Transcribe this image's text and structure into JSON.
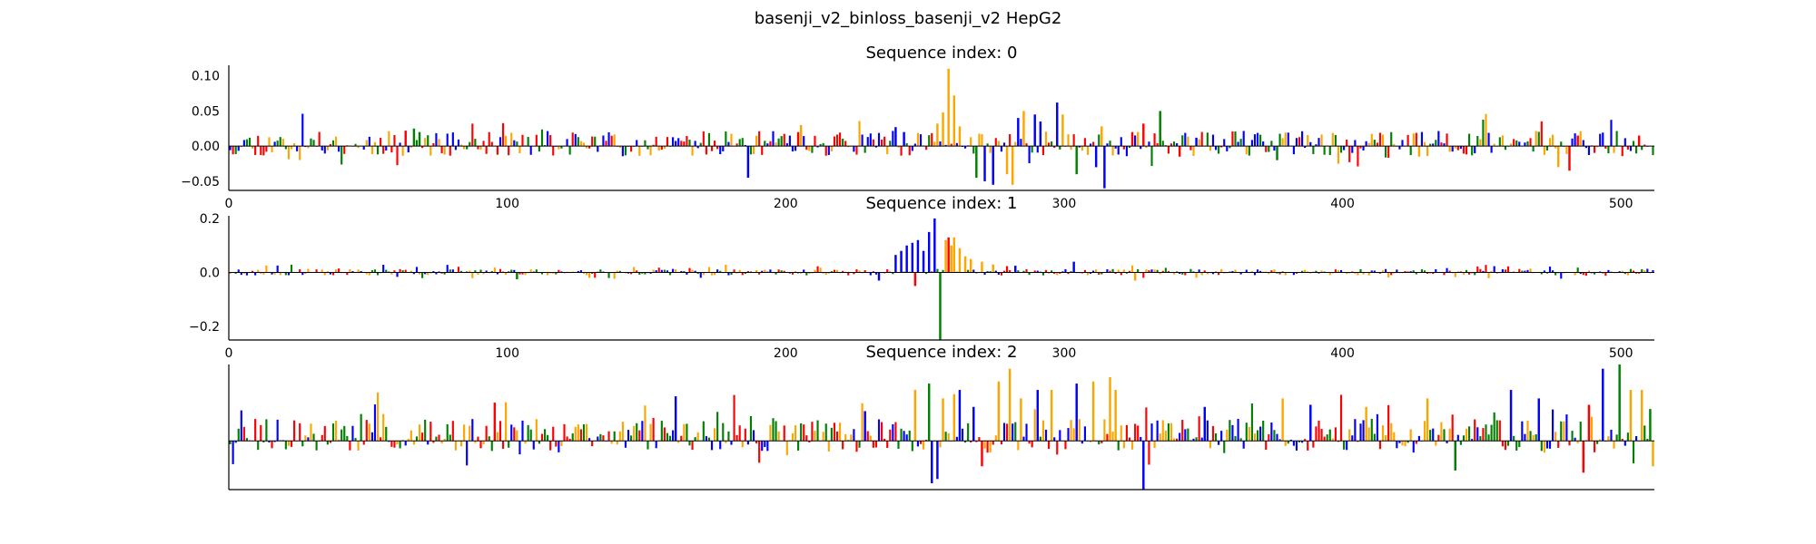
{
  "figure": {
    "title": "basenji_v2_binloss_basenji_v2 HepG2"
  },
  "colors": {
    "A": "#008000",
    "C": "#0000ff",
    "G": "#ffa500",
    "T": "#ff0000"
  },
  "chart_data": [
    {
      "type": "sequence-logo",
      "title": "Sequence index: 0",
      "xlim": [
        0,
        512
      ],
      "ylim": [
        -0.063,
        0.115
      ],
      "x_ticks": [
        "0",
        "100",
        "200",
        "300",
        "400",
        "500"
      ],
      "y_ticks": [
        "0.10",
        "0.05",
        "0.00",
        "−0.05"
      ],
      "y_tick_values": [
        0.1,
        0.05,
        0.0,
        -0.05
      ],
      "features": [
        {
          "x": 63,
          "value": 0.022,
          "base": "T"
        },
        {
          "x": 66,
          "value": 0.025,
          "base": "A"
        },
        {
          "x": 68,
          "value": 0.02,
          "base": "A"
        },
        {
          "x": 186,
          "value": -0.045,
          "base": "C"
        },
        {
          "x": 205,
          "value": 0.03,
          "base": "G"
        },
        {
          "x": 204,
          "value": 0.02,
          "base": "T"
        },
        {
          "x": 239,
          "value": 0.027,
          "base": "C"
        },
        {
          "x": 242,
          "value": 0.02,
          "base": "C"
        },
        {
          "x": 254,
          "value": 0.032,
          "base": "G"
        },
        {
          "x": 256,
          "value": 0.048,
          "base": "G"
        },
        {
          "x": 258,
          "value": 0.11,
          "base": "G"
        },
        {
          "x": 260,
          "value": 0.072,
          "base": "G"
        },
        {
          "x": 262,
          "value": 0.028,
          "base": "G"
        },
        {
          "x": 268,
          "value": -0.045,
          "base": "A"
        },
        {
          "x": 271,
          "value": -0.05,
          "base": "C"
        },
        {
          "x": 274,
          "value": -0.055,
          "base": "C"
        },
        {
          "x": 279,
          "value": -0.04,
          "base": "G"
        },
        {
          "x": 281,
          "value": -0.055,
          "base": "G"
        },
        {
          "x": 283,
          "value": 0.04,
          "base": "C"
        },
        {
          "x": 285,
          "value": 0.05,
          "base": "G"
        },
        {
          "x": 289,
          "value": 0.045,
          "base": "C"
        },
        {
          "x": 291,
          "value": 0.035,
          "base": "C"
        },
        {
          "x": 297,
          "value": 0.062,
          "base": "C"
        },
        {
          "x": 299,
          "value": 0.045,
          "base": "G"
        },
        {
          "x": 304,
          "value": -0.04,
          "base": "A"
        },
        {
          "x": 311,
          "value": -0.03,
          "base": "C"
        },
        {
          "x": 314,
          "value": -0.06,
          "base": "C"
        },
        {
          "x": 313,
          "value": 0.028,
          "base": "G"
        },
        {
          "x": 324,
          "value": 0.02,
          "base": "T"
        },
        {
          "x": 326,
          "value": 0.02,
          "base": "G"
        },
        {
          "x": 328,
          "value": 0.032,
          "base": "T"
        },
        {
          "x": 334,
          "value": 0.05,
          "base": "A"
        },
        {
          "x": 341,
          "value": -0.015,
          "base": "T"
        },
        {
          "x": 347,
          "value": 0.012,
          "base": "C"
        },
        {
          "x": 376,
          "value": -0.02,
          "base": "A"
        },
        {
          "x": 427,
          "value": -0.015,
          "base": "G"
        },
        {
          "x": 477,
          "value": -0.03,
          "base": "G"
        },
        {
          "x": 481,
          "value": -0.035,
          "base": "T"
        },
        {
          "x": 484,
          "value": 0.015,
          "base": "T"
        },
        {
          "x": 506,
          "value": 0.015,
          "base": "T"
        }
      ],
      "seed": 11,
      "noise": 0.018,
      "neg_bias": 0.4
    },
    {
      "type": "sequence-logo",
      "title": "Sequence index: 1",
      "xlim": [
        0,
        512
      ],
      "ylim": [
        -0.25,
        0.21
      ],
      "x_ticks": [
        "0",
        "100",
        "200",
        "300",
        "400",
        "500"
      ],
      "y_ticks": [
        "0.2",
        "0.0",
        "−0.2"
      ],
      "y_tick_values": [
        0.2,
        0.0,
        -0.2
      ],
      "features": [
        {
          "x": 233,
          "value": -0.03,
          "base": "C"
        },
        {
          "x": 239,
          "value": 0.065,
          "base": "C"
        },
        {
          "x": 241,
          "value": 0.08,
          "base": "C"
        },
        {
          "x": 243,
          "value": 0.1,
          "base": "C"
        },
        {
          "x": 245,
          "value": 0.11,
          "base": "C"
        },
        {
          "x": 247,
          "value": 0.12,
          "base": "C"
        },
        {
          "x": 249,
          "value": 0.08,
          "base": "C"
        },
        {
          "x": 251,
          "value": 0.15,
          "base": "C"
        },
        {
          "x": 253,
          "value": 0.2,
          "base": "C"
        },
        {
          "x": 257,
          "value": 0.12,
          "base": "G"
        },
        {
          "x": 259,
          "value": 0.1,
          "base": "G"
        },
        {
          "x": 260,
          "value": 0.13,
          "base": "G"
        },
        {
          "x": 262,
          "value": 0.09,
          "base": "G"
        },
        {
          "x": 255,
          "value": -0.25,
          "base": "A"
        },
        {
          "x": 258,
          "value": 0.13,
          "base": "T"
        },
        {
          "x": 246,
          "value": -0.05,
          "base": "T"
        },
        {
          "x": 264,
          "value": 0.06,
          "base": "G"
        },
        {
          "x": 266,
          "value": 0.05,
          "base": "G"
        },
        {
          "x": 270,
          "value": 0.04,
          "base": "G"
        },
        {
          "x": 274,
          "value": 0.03,
          "base": "G"
        },
        {
          "x": 282,
          "value": 0.025,
          "base": "C"
        },
        {
          "x": 303,
          "value": 0.04,
          "base": "C"
        },
        {
          "x": 325,
          "value": -0.03,
          "base": "G"
        },
        {
          "x": 103,
          "value": -0.025,
          "base": "A"
        }
      ],
      "seed": 23,
      "noise": 0.012,
      "neg_bias": 0.45
    },
    {
      "type": "sequence-logo",
      "title": "Sequence index: 2",
      "xlim": [
        0,
        512
      ],
      "ylim": [
        -0.115,
        0.18
      ],
      "x_ticks": [],
      "y_ticks": [],
      "y_tick_values": [],
      "features": [
        {
          "x": 95,
          "value": 0.09,
          "base": "T"
        },
        {
          "x": 160,
          "value": 0.105,
          "base": "C"
        },
        {
          "x": 228,
          "value": 0.07,
          "base": "C"
        },
        {
          "x": 246,
          "value": 0.12,
          "base": "G"
        },
        {
          "x": 251,
          "value": 0.135,
          "base": "A"
        },
        {
          "x": 252,
          "value": -0.1,
          "base": "C"
        },
        {
          "x": 254,
          "value": -0.09,
          "base": "C"
        },
        {
          "x": 256,
          "value": 0.1,
          "base": "G"
        },
        {
          "x": 260,
          "value": 0.11,
          "base": "G"
        },
        {
          "x": 262,
          "value": 0.12,
          "base": "C"
        },
        {
          "x": 267,
          "value": 0.08,
          "base": "C"
        },
        {
          "x": 270,
          "value": -0.06,
          "base": "T"
        },
        {
          "x": 276,
          "value": 0.14,
          "base": "G"
        },
        {
          "x": 280,
          "value": 0.17,
          "base": "G"
        },
        {
          "x": 284,
          "value": 0.1,
          "base": "G"
        },
        {
          "x": 290,
          "value": 0.12,
          "base": "C"
        },
        {
          "x": 295,
          "value": 0.12,
          "base": "G"
        },
        {
          "x": 304,
          "value": 0.135,
          "base": "C"
        },
        {
          "x": 310,
          "value": 0.14,
          "base": "G"
        },
        {
          "x": 316,
          "value": 0.15,
          "base": "G"
        },
        {
          "x": 318,
          "value": 0.12,
          "base": "G"
        },
        {
          "x": 328,
          "value": -0.115,
          "base": "C"
        },
        {
          "x": 350,
          "value": 0.08,
          "base": "C"
        },
        {
          "x": 378,
          "value": 0.1,
          "base": "G"
        },
        {
          "x": 388,
          "value": 0.085,
          "base": "C"
        },
        {
          "x": 408,
          "value": 0.08,
          "base": "G"
        },
        {
          "x": 430,
          "value": 0.1,
          "base": "G"
        },
        {
          "x": 440,
          "value": -0.07,
          "base": "A"
        },
        {
          "x": 460,
          "value": 0.12,
          "base": "C"
        },
        {
          "x": 470,
          "value": 0.1,
          "base": "C"
        },
        {
          "x": 486,
          "value": -0.075,
          "base": "T"
        },
        {
          "x": 488,
          "value": 0.085,
          "base": "T"
        },
        {
          "x": 493,
          "value": 0.17,
          "base": "C"
        },
        {
          "x": 499,
          "value": 0.18,
          "base": "A"
        },
        {
          "x": 503,
          "value": 0.12,
          "base": "G"
        },
        {
          "x": 507,
          "value": 0.12,
          "base": "G"
        },
        {
          "x": 510,
          "value": 0.075,
          "base": "A"
        },
        {
          "x": 511,
          "value": -0.06,
          "base": "G"
        }
      ],
      "seed": 37,
      "noise": 0.04,
      "neg_bias": 0.35
    }
  ]
}
